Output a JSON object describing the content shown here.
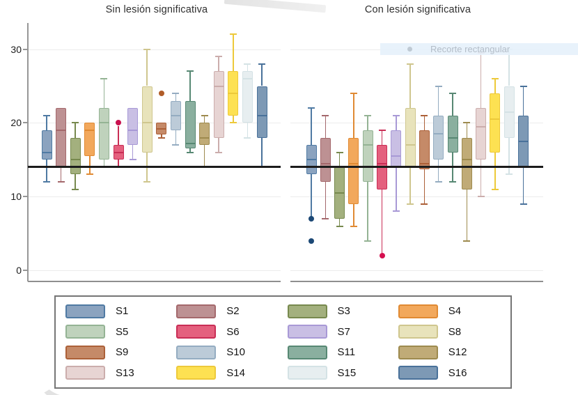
{
  "watermark": {
    "snip_label": "Recorte rectangular"
  },
  "chart_data": {
    "type": "boxplot",
    "yticks": [
      0,
      10,
      20,
      30
    ],
    "ylim": [
      0,
      33.5
    ],
    "reference_line": 14,
    "grid": "horizontal",
    "legend_position": "bottom",
    "series": [
      {
        "name": "S1",
        "fill": "#8BA3BF",
        "stroke": "#4F7AA3"
      },
      {
        "name": "S2",
        "fill": "#BD9193",
        "stroke": "#A4686C"
      },
      {
        "name": "S3",
        "fill": "#A3B07E",
        "stroke": "#77894E"
      },
      {
        "name": "S4",
        "fill": "#F2A85C",
        "stroke": "#E08A33"
      },
      {
        "name": "S5",
        "fill": "#BFD2BC",
        "stroke": "#94B394"
      },
      {
        "name": "S6",
        "fill": "#E4607E",
        "stroke": "#C92D55"
      },
      {
        "name": "S7",
        "fill": "#C9BFE4",
        "stroke": "#A899D6"
      },
      {
        "name": "S8",
        "fill": "#E8E3BB",
        "stroke": "#CFC68E"
      },
      {
        "name": "S9",
        "fill": "#C58A68",
        "stroke": "#AC6038"
      },
      {
        "name": "S10",
        "fill": "#BCCBD8",
        "stroke": "#94ACC1"
      },
      {
        "name": "S11",
        "fill": "#8AAF9F",
        "stroke": "#578873"
      },
      {
        "name": "S12",
        "fill": "#C0AB77",
        "stroke": "#9D8A4E"
      },
      {
        "name": "S13",
        "fill": "#E7D4D3",
        "stroke": "#CBADAC"
      },
      {
        "name": "S14",
        "fill": "#FDE152",
        "stroke": "#EDC93A"
      },
      {
        "name": "S15",
        "fill": "#E7EEF0",
        "stroke": "#D4E2E5"
      },
      {
        "name": "S16",
        "fill": "#7D99B5",
        "stroke": "#49719A"
      }
    ],
    "panels": [
      {
        "title": "Sin lesión significativa",
        "boxes": [
          {
            "s": "S1",
            "lo": 12,
            "q1": 15,
            "med": 16,
            "q3": 19,
            "hi": 21
          },
          {
            "s": "S2",
            "lo": 12,
            "q1": 14,
            "med": 19,
            "q3": 22,
            "hi": 22
          },
          {
            "s": "S3",
            "lo": 11,
            "q1": 13,
            "med": 15,
            "q3": 18,
            "hi": 20
          },
          {
            "s": "S4",
            "lo": 13,
            "q1": 15.5,
            "med": 19,
            "q3": 20,
            "hi": 20
          },
          {
            "s": "S5",
            "lo": 14,
            "q1": 15,
            "med": 20,
            "q3": 22,
            "hi": 26
          },
          {
            "s": "S6",
            "lo": 14,
            "q1": 15,
            "med": 16,
            "q3": 17,
            "hi": 19.6,
            "cap_hi": false,
            "outliers": [
              20
            ],
            "dot_color": "#C9104E"
          },
          {
            "s": "S7",
            "lo": 15,
            "q1": 17,
            "med": 19,
            "q3": 22,
            "hi": 22
          },
          {
            "s": "S8",
            "lo": 12,
            "q1": 16,
            "med": 20,
            "q3": 25,
            "hi": 30
          },
          {
            "s": "S9",
            "lo": 18,
            "q1": 18.4,
            "med": 19.2,
            "q3": 20,
            "hi": 20,
            "outliers": [
              24
            ],
            "dot_color": "#B05C28"
          },
          {
            "s": "S10",
            "lo": 17,
            "q1": 19,
            "med": 21,
            "q3": 23,
            "hi": 24
          },
          {
            "s": "S11",
            "lo": 16,
            "q1": 16.5,
            "med": 17.2,
            "q3": 23,
            "hi": 27
          },
          {
            "s": "S12",
            "lo": 14,
            "q1": 17,
            "med": 18,
            "q3": 20,
            "hi": 21
          },
          {
            "s": "S13",
            "lo": 16,
            "q1": 18,
            "med": 25,
            "q3": 27,
            "hi": 29
          },
          {
            "s": "S14",
            "lo": 20,
            "q1": 21,
            "med": 24,
            "q3": 27,
            "hi": 32
          },
          {
            "s": "S15",
            "lo": 18,
            "q1": 20,
            "med": 26,
            "q3": 27,
            "hi": 28
          },
          {
            "s": "S16",
            "lo": 14,
            "q1": 18,
            "med": 21,
            "q3": 25,
            "hi": 28
          }
        ]
      },
      {
        "title": "Con lesión significativa",
        "boxes": [
          {
            "s": "S1",
            "lo": 7.3,
            "q1": 13,
            "med": 15,
            "q3": 17,
            "hi": 22,
            "cap_lo": false,
            "outliers": [
              7,
              4
            ],
            "dot_color": "#1C4875"
          },
          {
            "s": "S2",
            "lo": 7,
            "q1": 12,
            "med": 14.5,
            "q3": 18,
            "hi": 21
          },
          {
            "s": "S3",
            "lo": 6,
            "q1": 7,
            "med": 10.5,
            "q3": 14,
            "hi": 16
          },
          {
            "s": "S4",
            "lo": 6,
            "q1": 9,
            "med": 14.5,
            "q3": 18,
            "hi": 24
          },
          {
            "s": "S5",
            "lo": 4,
            "q1": 12,
            "med": 17,
            "q3": 19,
            "hi": 21
          },
          {
            "s": "S6",
            "lo": 2.4,
            "q1": 11,
            "med": 14.5,
            "q3": 17,
            "hi": 19,
            "cap_lo": false,
            "outliers": [
              2
            ],
            "dot_color": "#D50F4F"
          },
          {
            "s": "S7",
            "lo": 8,
            "q1": 14,
            "med": 15.5,
            "q3": 19,
            "hi": 21
          },
          {
            "s": "S8",
            "lo": 9,
            "q1": 14,
            "med": 17,
            "q3": 22,
            "hi": 28
          },
          {
            "s": "S9",
            "lo": 9,
            "q1": 13.7,
            "med": 14.5,
            "q3": 19,
            "hi": 21
          },
          {
            "s": "S10",
            "lo": 12,
            "q1": 15,
            "med": 18.5,
            "q3": 21,
            "hi": 25
          },
          {
            "s": "S11",
            "lo": 12,
            "q1": 16,
            "med": 18,
            "q3": 21,
            "hi": 24
          },
          {
            "s": "S12",
            "lo": 4,
            "q1": 11,
            "med": 15,
            "q3": 18,
            "hi": 20
          },
          {
            "s": "S13",
            "lo": 10,
            "q1": 15,
            "med": 19.5,
            "q3": 22,
            "hi": 29.5
          },
          {
            "s": "S14",
            "lo": 11,
            "q1": 16,
            "med": 20.5,
            "q3": 24,
            "hi": 26
          },
          {
            "s": "S15",
            "lo": 13,
            "q1": 18,
            "med": 21.5,
            "q3": 25,
            "hi": 30
          },
          {
            "s": "S16",
            "lo": 9,
            "q1": 14,
            "med": 17.5,
            "q3": 21,
            "hi": 25
          }
        ]
      }
    ]
  }
}
